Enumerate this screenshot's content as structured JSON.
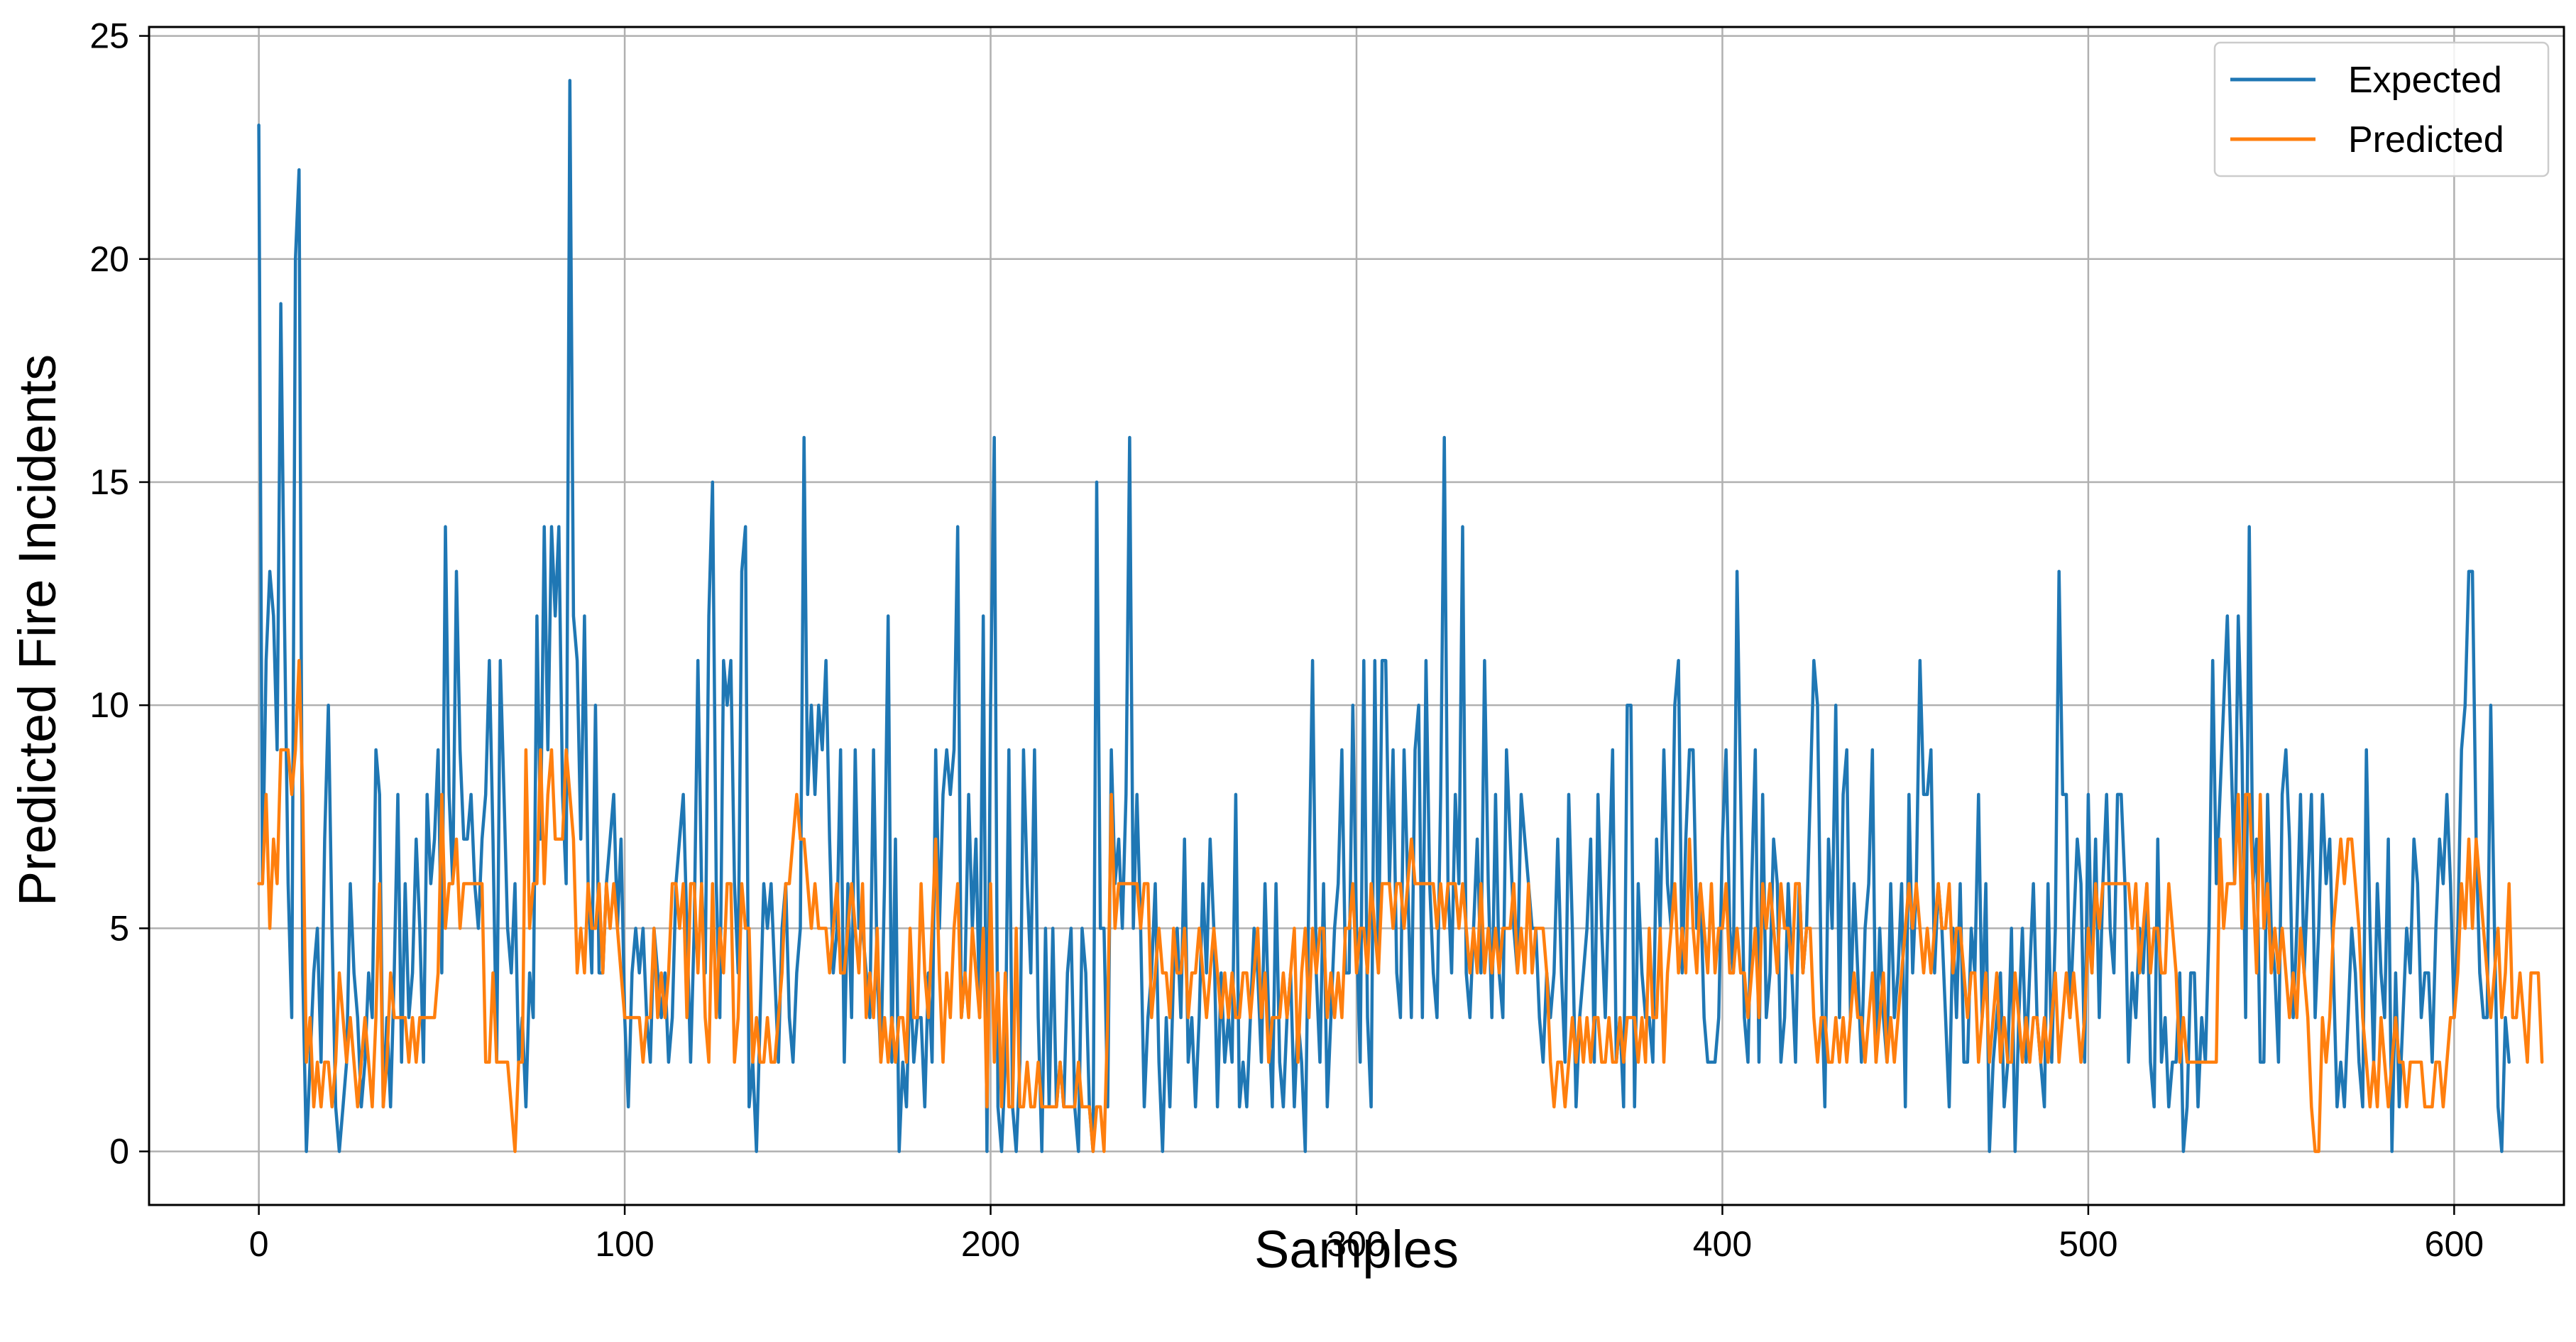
{
  "chart_data": {
    "type": "line",
    "xlabel": "Samples",
    "ylabel": "Predicted Fire Incidents",
    "xlim": [
      -30,
      630
    ],
    "ylim": [
      -1.2,
      25.2
    ],
    "xticks": [
      0,
      100,
      200,
      300,
      400,
      500,
      600
    ],
    "yticks": [
      0,
      5,
      10,
      15,
      20,
      25
    ],
    "grid": true,
    "legend": "top-right",
    "series": [
      {
        "name": "Expected",
        "color": "#1f77b4",
        "values": [
          23,
          6,
          11,
          13,
          12,
          9,
          19,
          12,
          6,
          3,
          20,
          22,
          4,
          0,
          2,
          4,
          5,
          2,
          7,
          10,
          5,
          1,
          0,
          1,
          2,
          6,
          4,
          3,
          1,
          2,
          4,
          3,
          9,
          8,
          1,
          3,
          1,
          4,
          8,
          2,
          6,
          3,
          4,
          7,
          5,
          2,
          8,
          6,
          7,
          9,
          4,
          14,
          8,
          6,
          13,
          9,
          7,
          7,
          8,
          6,
          5,
          7,
          8,
          11,
          7,
          2,
          11,
          8,
          5,
          4,
          6,
          2,
          3,
          1,
          4,
          3,
          12,
          7,
          14,
          9,
          14,
          12,
          14,
          8,
          6,
          24,
          12,
          11,
          7,
          12,
          6,
          4,
          10,
          4,
          4,
          6,
          7,
          8,
          5,
          7,
          3,
          1,
          4,
          5,
          4,
          5,
          3,
          2,
          5,
          4,
          3,
          4,
          2,
          3,
          6,
          7,
          8,
          5,
          2,
          5,
          11,
          6,
          4,
          12,
          15,
          6,
          3,
          11,
          10,
          11,
          6,
          4,
          13,
          14,
          1,
          2,
          0,
          3,
          6,
          5,
          6,
          4,
          2,
          5,
          6,
          3,
          2,
          4,
          5,
          16,
          8,
          10,
          8,
          10,
          9,
          11,
          7,
          4,
          5,
          9,
          2,
          6,
          3,
          9,
          5,
          5,
          4,
          3,
          9,
          4,
          2,
          6,
          12,
          2,
          7,
          0,
          2,
          1,
          4,
          2,
          3,
          3,
          1,
          4,
          2,
          9,
          5,
          8,
          9,
          8,
          9,
          14,
          3,
          4,
          8,
          5,
          7,
          3,
          12,
          0,
          10,
          16,
          1,
          0,
          2,
          9,
          1,
          0,
          2,
          9,
          6,
          4,
          9,
          3,
          0,
          5,
          1,
          5,
          1,
          2,
          1,
          4,
          5,
          1,
          0,
          5,
          4,
          1,
          0,
          15,
          5,
          5,
          1,
          9,
          6,
          7,
          5,
          8,
          16,
          5,
          8,
          5,
          1,
          3,
          4,
          6,
          2,
          0,
          3,
          1,
          4,
          5,
          3,
          7,
          2,
          3,
          1,
          3,
          6,
          4,
          7,
          5,
          1,
          4,
          2,
          3,
          2,
          8,
          1,
          2,
          1,
          3,
          5,
          4,
          2,
          6,
          3,
          1,
          6,
          2,
          1,
          3,
          4,
          1,
          3,
          2,
          0,
          6,
          11,
          4,
          2,
          6,
          1,
          3,
          5,
          6,
          9,
          4,
          4,
          10,
          5,
          2,
          11,
          3,
          1,
          11,
          4,
          11,
          11,
          6,
          9,
          4,
          3,
          9,
          6,
          3,
          9,
          10,
          3,
          11,
          6,
          4,
          3,
          8,
          16,
          6,
          4,
          8,
          6,
          14,
          4,
          3,
          5,
          7,
          4,
          11,
          6,
          3,
          8,
          4,
          3,
          9,
          7,
          5,
          4,
          8,
          7,
          6,
          5,
          5,
          3,
          2,
          4,
          3,
          4,
          7,
          4,
          2,
          8,
          5,
          1,
          3,
          4,
          5,
          7,
          2,
          8,
          5,
          3,
          6,
          9,
          2,
          3,
          1,
          10,
          10,
          1,
          6,
          4,
          3,
          3,
          2,
          7,
          5,
          9,
          6,
          5,
          10,
          11,
          4,
          7,
          9,
          9,
          5,
          6,
          3,
          2,
          2,
          2,
          3,
          7,
          9,
          5,
          4,
          13,
          8,
          3,
          2,
          6,
          9,
          2,
          8,
          3,
          4,
          7,
          6,
          2,
          3,
          6,
          4,
          2,
          6,
          4,
          5,
          8,
          11,
          10,
          4,
          1,
          7,
          5,
          10,
          3,
          8,
          9,
          3,
          6,
          4,
          2,
          5,
          6,
          9,
          2,
          5,
          3,
          2,
          6,
          3,
          4,
          6,
          1,
          8,
          4,
          6,
          11,
          8,
          8,
          9,
          4,
          6,
          5,
          3,
          1,
          5,
          3,
          6,
          2,
          2,
          5,
          4,
          8,
          3,
          6,
          0,
          2,
          3,
          4,
          1,
          2,
          5,
          0,
          3,
          5,
          2,
          4,
          6,
          3,
          2,
          1,
          6,
          2,
          5,
          13,
          8,
          8,
          3,
          5,
          7,
          6,
          2,
          8,
          4,
          7,
          3,
          6,
          8,
          5,
          4,
          8,
          8,
          6,
          2,
          4,
          3,
          5,
          4,
          6,
          2,
          1,
          7,
          2,
          3,
          1,
          2,
          2,
          4,
          0,
          1,
          4,
          4,
          1,
          3,
          2,
          5,
          11,
          6,
          8,
          10,
          12,
          9,
          6,
          12,
          9,
          3,
          14,
          6,
          7,
          2,
          2,
          8,
          5,
          4,
          2,
          8,
          9,
          7,
          3,
          5,
          8,
          4,
          6,
          8,
          3,
          5,
          8,
          6,
          7,
          4,
          1,
          2,
          1,
          3,
          5,
          4,
          2,
          1,
          9,
          5,
          2,
          6,
          4,
          3,
          7,
          0,
          4,
          1,
          3,
          5,
          4,
          7,
          6,
          3,
          4,
          4,
          2,
          5,
          7,
          6,
          8,
          6,
          3,
          5,
          9,
          10,
          13,
          13,
          7,
          4,
          3,
          3,
          10,
          5,
          1,
          0,
          3,
          2
        ]
      },
      {
        "name": "Predicted",
        "color": "#ff7f0e",
        "values": [
          6,
          6,
          8,
          5,
          7,
          6,
          9,
          9,
          9,
          8,
          9,
          11,
          8,
          2,
          3,
          1,
          2,
          1,
          2,
          2,
          1,
          2,
          4,
          3,
          2,
          3,
          2,
          1,
          2,
          3,
          2,
          1,
          3,
          6,
          1,
          2,
          4,
          3,
          3,
          3,
          3,
          2,
          3,
          2,
          3,
          3,
          3,
          3,
          3,
          4,
          8,
          5,
          6,
          6,
          7,
          5,
          6,
          6,
          6,
          6,
          6,
          6,
          2,
          2,
          4,
          2,
          2,
          2,
          2,
          1,
          0,
          2,
          2,
          9,
          5,
          6,
          6,
          9,
          6,
          8,
          9,
          7,
          7,
          7,
          9,
          8,
          7,
          4,
          5,
          4,
          6,
          5,
          5,
          6,
          4,
          6,
          5,
          6,
          5,
          4,
          3,
          3,
          3,
          3,
          3,
          2,
          3,
          3,
          5,
          3,
          4,
          3,
          4,
          6,
          6,
          5,
          6,
          3,
          6,
          6,
          4,
          6,
          3,
          2,
          6,
          3,
          5,
          4,
          6,
          6,
          2,
          3,
          6,
          5,
          5,
          2,
          3,
          2,
          2,
          3,
          2,
          2,
          3,
          4,
          6,
          6,
          7,
          8,
          7,
          7,
          6,
          5,
          6,
          5,
          5,
          5,
          4,
          5,
          6,
          4,
          4,
          5,
          6,
          5,
          4,
          6,
          3,
          4,
          3,
          5,
          2,
          3,
          2,
          3,
          2,
          3,
          3,
          2,
          5,
          3,
          3,
          6,
          4,
          3,
          5,
          7,
          4,
          2,
          4,
          3,
          5,
          6,
          3,
          4,
          3,
          5,
          4,
          3,
          5,
          1,
          6,
          2,
          4,
          1,
          4,
          1,
          1,
          5,
          1,
          1,
          2,
          1,
          1,
          2,
          1,
          1,
          1,
          1,
          1,
          2,
          1,
          1,
          1,
          1,
          2,
          1,
          1,
          1,
          0,
          1,
          1,
          0,
          3,
          8,
          5,
          6,
          6,
          6,
          6,
          6,
          6,
          5,
          6,
          6,
          3,
          4,
          5,
          4,
          4,
          3,
          5,
          4,
          4,
          5,
          3,
          4,
          4,
          5,
          4,
          3,
          4,
          5,
          4,
          3,
          4,
          3,
          4,
          3,
          3,
          4,
          4,
          3,
          4,
          5,
          3,
          4,
          2,
          3,
          3,
          3,
          4,
          3,
          4,
          5,
          2,
          4,
          5,
          3,
          5,
          4,
          5,
          5,
          3,
          4,
          3,
          4,
          3,
          5,
          5,
          6,
          4,
          5,
          5,
          4,
          6,
          5,
          4,
          6,
          6,
          6,
          5,
          6,
          6,
          5,
          6,
          7,
          6,
          6,
          6,
          6,
          6,
          6,
          5,
          6,
          5,
          6,
          6,
          6,
          5,
          6,
          5,
          4,
          5,
          4,
          6,
          4,
          5,
          4,
          5,
          4,
          5,
          5,
          5,
          6,
          4,
          5,
          4,
          6,
          4,
          5,
          5,
          5,
          4,
          2,
          1,
          2,
          2,
          1,
          2,
          3,
          2,
          3,
          2,
          3,
          2,
          3,
          3,
          2,
          2,
          3,
          2,
          2,
          3,
          2,
          3,
          3,
          3,
          2,
          3,
          2,
          5,
          3,
          3,
          5,
          2,
          4,
          5,
          6,
          4,
          5,
          4,
          7,
          5,
          4,
          6,
          5,
          4,
          6,
          4,
          5,
          5,
          6,
          4,
          4,
          5,
          4,
          4,
          3,
          4,
          5,
          3,
          6,
          5,
          6,
          5,
          4,
          6,
          5,
          5,
          4,
          6,
          6,
          4,
          5,
          5,
          3,
          2,
          3,
          3,
          2,
          2,
          3,
          2,
          3,
          2,
          3,
          4,
          3,
          3,
          2,
          3,
          4,
          2,
          3,
          4,
          2,
          3,
          2,
          3,
          4,
          5,
          6,
          5,
          6,
          5,
          4,
          5,
          4,
          5,
          6,
          5,
          5,
          6,
          4,
          5,
          5,
          4,
          3,
          4,
          4,
          2,
          3,
          4,
          2,
          3,
          4,
          2,
          3,
          2,
          2,
          4,
          3,
          2,
          3,
          2,
          3,
          3,
          2,
          3,
          2,
          3,
          4,
          2,
          3,
          4,
          3,
          4,
          3,
          2,
          3,
          5,
          4,
          6,
          5,
          6,
          6,
          6,
          6,
          6,
          6,
          6,
          6,
          5,
          6,
          4,
          5,
          6,
          4,
          5,
          5,
          4,
          4,
          6,
          5,
          4,
          2,
          3,
          2,
          2,
          2,
          2,
          2,
          2,
          2,
          2,
          2,
          7,
          5,
          6,
          6,
          6,
          8,
          5,
          8,
          8,
          6,
          4,
          8,
          5,
          6,
          4,
          5,
          4,
          5,
          4,
          3,
          4,
          3,
          5,
          4,
          3,
          1,
          0,
          0,
          3,
          2,
          3,
          5,
          6,
          7,
          6,
          7,
          7,
          6,
          5,
          3,
          2,
          1,
          2,
          1,
          3,
          2,
          1,
          2,
          3,
          2,
          2,
          1,
          2,
          2,
          2,
          2,
          1,
          1,
          1,
          2,
          2,
          1,
          2,
          3,
          3,
          4,
          6,
          5,
          7,
          5,
          7,
          6,
          5,
          4,
          3,
          4,
          5,
          3,
          4,
          6,
          3,
          3,
          4,
          3,
          2,
          4,
          4,
          4,
          2
        ]
      }
    ]
  }
}
